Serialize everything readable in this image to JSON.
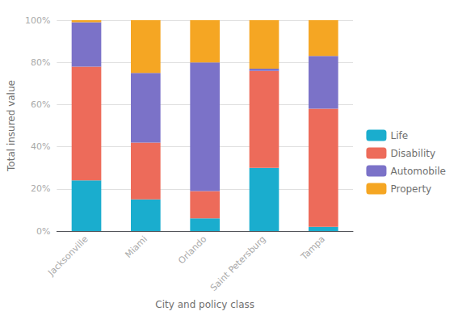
{
  "chart_data": {
    "type": "bar",
    "stacked": true,
    "categories": [
      "Jacksonville",
      "Miami",
      "Orlando",
      "Saint Petersburg",
      "Tampa"
    ],
    "series": [
      {
        "name": "Life",
        "color": "#1aadce",
        "values": [
          0.24,
          0.15,
          0.06,
          0.3,
          0.02
        ]
      },
      {
        "name": "Disability",
        "color": "#ed6b5a",
        "values": [
          0.54,
          0.27,
          0.13,
          0.46,
          0.56
        ]
      },
      {
        "name": "Automobile",
        "color": "#7b72c8",
        "values": [
          0.21,
          0.33,
          0.61,
          0.01,
          0.25
        ]
      },
      {
        "name": "Property",
        "color": "#f5a623",
        "values": [
          0.01,
          0.25,
          0.2,
          0.23,
          0.17
        ]
      }
    ],
    "xlabel": "City and policy class",
    "ylabel": "Total insured value",
    "ylim": [
      0,
      1.0
    ],
    "yticks": [
      {
        "value": 0,
        "label": "0%"
      },
      {
        "value": 0.2,
        "label": "20%"
      },
      {
        "value": 0.4,
        "label": "40%"
      },
      {
        "value": 0.6,
        "label": "60%"
      },
      {
        "value": 0.8,
        "label": "80%"
      },
      {
        "value": 1.0,
        "label": "100%"
      }
    ],
    "grid": true,
    "legend": "right"
  }
}
